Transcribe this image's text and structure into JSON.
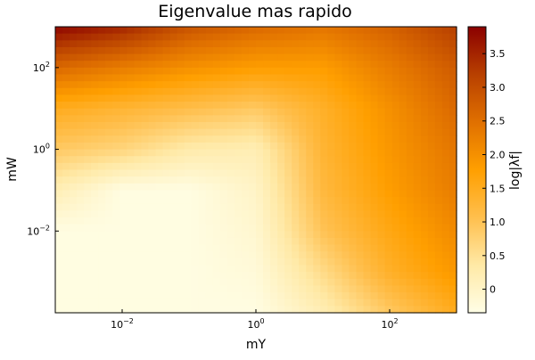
{
  "chart_data": {
    "type": "heatmap",
    "title": "Eigenvalue mas rapido",
    "xlabel": "mY",
    "ylabel": "mW",
    "colorbar_label": "log|λf|",
    "x_scale": "log",
    "y_scale": "log",
    "x_range": [
      0.001,
      1000
    ],
    "y_range": [
      0.0001,
      1000
    ],
    "x_ticks": [
      {
        "value": 0.01,
        "base": "10",
        "exp": "−2"
      },
      {
        "value": 1,
        "base": "10",
        "exp": "0"
      },
      {
        "value": 100,
        "base": "10",
        "exp": "2"
      }
    ],
    "y_ticks": [
      {
        "value": 0.01,
        "base": "10",
        "exp": "−2"
      },
      {
        "value": 1,
        "base": "10",
        "exp": "0"
      },
      {
        "value": 100,
        "base": "10",
        "exp": "2"
      }
    ],
    "colorbar_range": [
      -0.35,
      3.9
    ],
    "colorbar_ticks": [
      "0",
      "0.5",
      "1.0",
      "1.5",
      "2.0",
      "2.5",
      "3.0",
      "3.5"
    ],
    "colormap": [
      "#fffee6",
      "#ffe9a6",
      "#ffbf4d",
      "#ff9f00",
      "#e07000",
      "#b84000",
      "#8b0000"
    ],
    "grid": false,
    "legend": "none",
    "z_samples": {
      "x": [
        0.001,
        0.01,
        0.1,
        1,
        10,
        100,
        1000
      ],
      "y": [
        0.0001,
        0.001,
        0.01,
        0.1,
        1,
        10,
        100,
        1000
      ],
      "z": [
        [
          -0.3,
          -0.3,
          -0.3,
          -0.3,
          0.2,
          0.9,
          1.5
        ],
        [
          -0.3,
          -0.3,
          -0.3,
          -0.2,
          0.6,
          1.4,
          1.9
        ],
        [
          -0.3,
          -0.3,
          -0.3,
          -0.1,
          1.0,
          1.6,
          2.1
        ],
        [
          0.2,
          -0.3,
          -0.3,
          0.0,
          1.2,
          1.8,
          2.3
        ],
        [
          0.9,
          0.7,
          0.3,
          0.2,
          1.3,
          1.9,
          2.4
        ],
        [
          1.5,
          1.3,
          1.1,
          0.9,
          1.4,
          2.0,
          2.6
        ],
        [
          2.6,
          2.3,
          2.0,
          1.8,
          1.8,
          2.3,
          2.8
        ],
        [
          3.85,
          3.5,
          2.9,
          2.6,
          2.4,
          2.7,
          3.2
        ]
      ]
    }
  }
}
